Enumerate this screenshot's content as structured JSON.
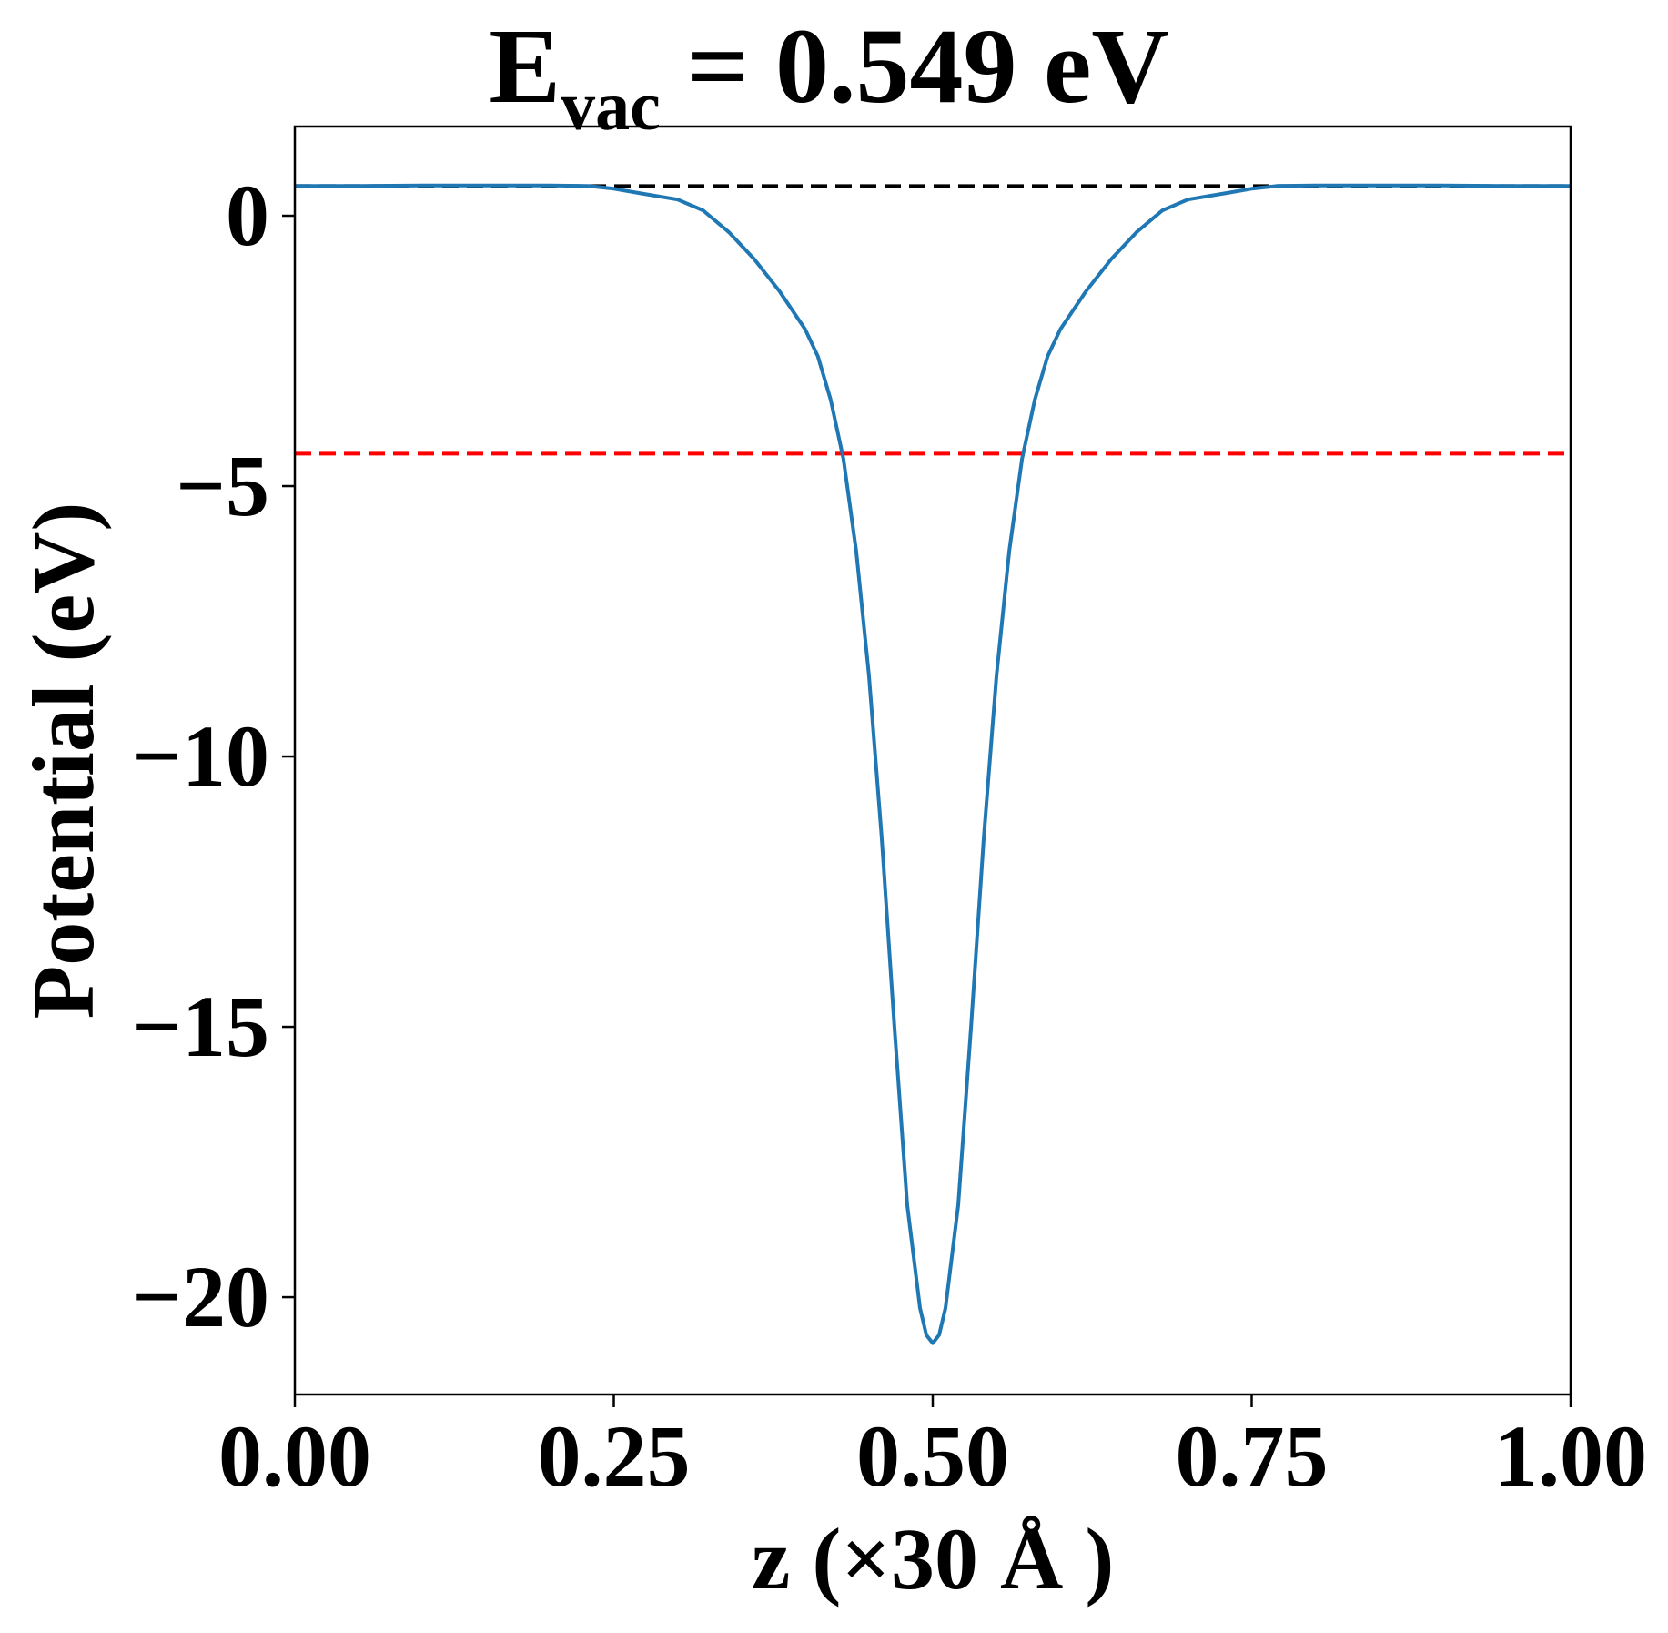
{
  "chart_data": {
    "type": "line",
    "title": {
      "main": "E",
      "subscript": "vac",
      "rest": " = 0.549 eV"
    },
    "xlabel": "z (×30 Å )",
    "ylabel": "Potential (eV)",
    "xlim": [
      0.0,
      1.0
    ],
    "ylim": [
      -21.8,
      1.65
    ],
    "x_ticks": [
      0.0,
      0.25,
      0.5,
      0.75,
      1.0
    ],
    "x_tick_labels": [
      "0.00",
      "0.25",
      "0.50",
      "0.75",
      "1.00"
    ],
    "y_ticks": [
      0,
      -5,
      -10,
      -15,
      -20
    ],
    "y_tick_labels": [
      "0",
      "−5",
      "−10",
      "−15",
      "−20"
    ],
    "grid": false,
    "legend": "none",
    "series": [
      {
        "color": "#1f77b4",
        "x": [
          0.0,
          0.05,
          0.1,
          0.15,
          0.2,
          0.23,
          0.25,
          0.27,
          0.3,
          0.32,
          0.34,
          0.36,
          0.38,
          0.4,
          0.41,
          0.42,
          0.43,
          0.44,
          0.45,
          0.46,
          0.47,
          0.48,
          0.49,
          0.495,
          0.5,
          0.505,
          0.51,
          0.52,
          0.53,
          0.54,
          0.55,
          0.56,
          0.57,
          0.58,
          0.59,
          0.6,
          0.62,
          0.64,
          0.66,
          0.68,
          0.7,
          0.73,
          0.75,
          0.77,
          0.8,
          0.85,
          0.9,
          0.95,
          1.0
        ],
        "y": [
          0.55,
          0.55,
          0.56,
          0.56,
          0.56,
          0.55,
          0.5,
          0.42,
          0.3,
          0.1,
          -0.3,
          -0.8,
          -1.4,
          -2.1,
          -2.6,
          -3.4,
          -4.5,
          -6.2,
          -8.5,
          -11.5,
          -15.0,
          -18.3,
          -20.2,
          -20.7,
          -20.85,
          -20.7,
          -20.2,
          -18.3,
          -15.0,
          -11.5,
          -8.5,
          -6.2,
          -4.5,
          -3.4,
          -2.6,
          -2.1,
          -1.4,
          -0.8,
          -0.3,
          0.1,
          0.3,
          0.42,
          0.5,
          0.55,
          0.56,
          0.56,
          0.56,
          0.55,
          0.55
        ]
      }
    ],
    "hlines": [
      {
        "y": 0.549,
        "color": "#000000",
        "style": "dashed"
      },
      {
        "y": -4.4,
        "color": "#ff0000",
        "style": "dashed"
      }
    ]
  }
}
